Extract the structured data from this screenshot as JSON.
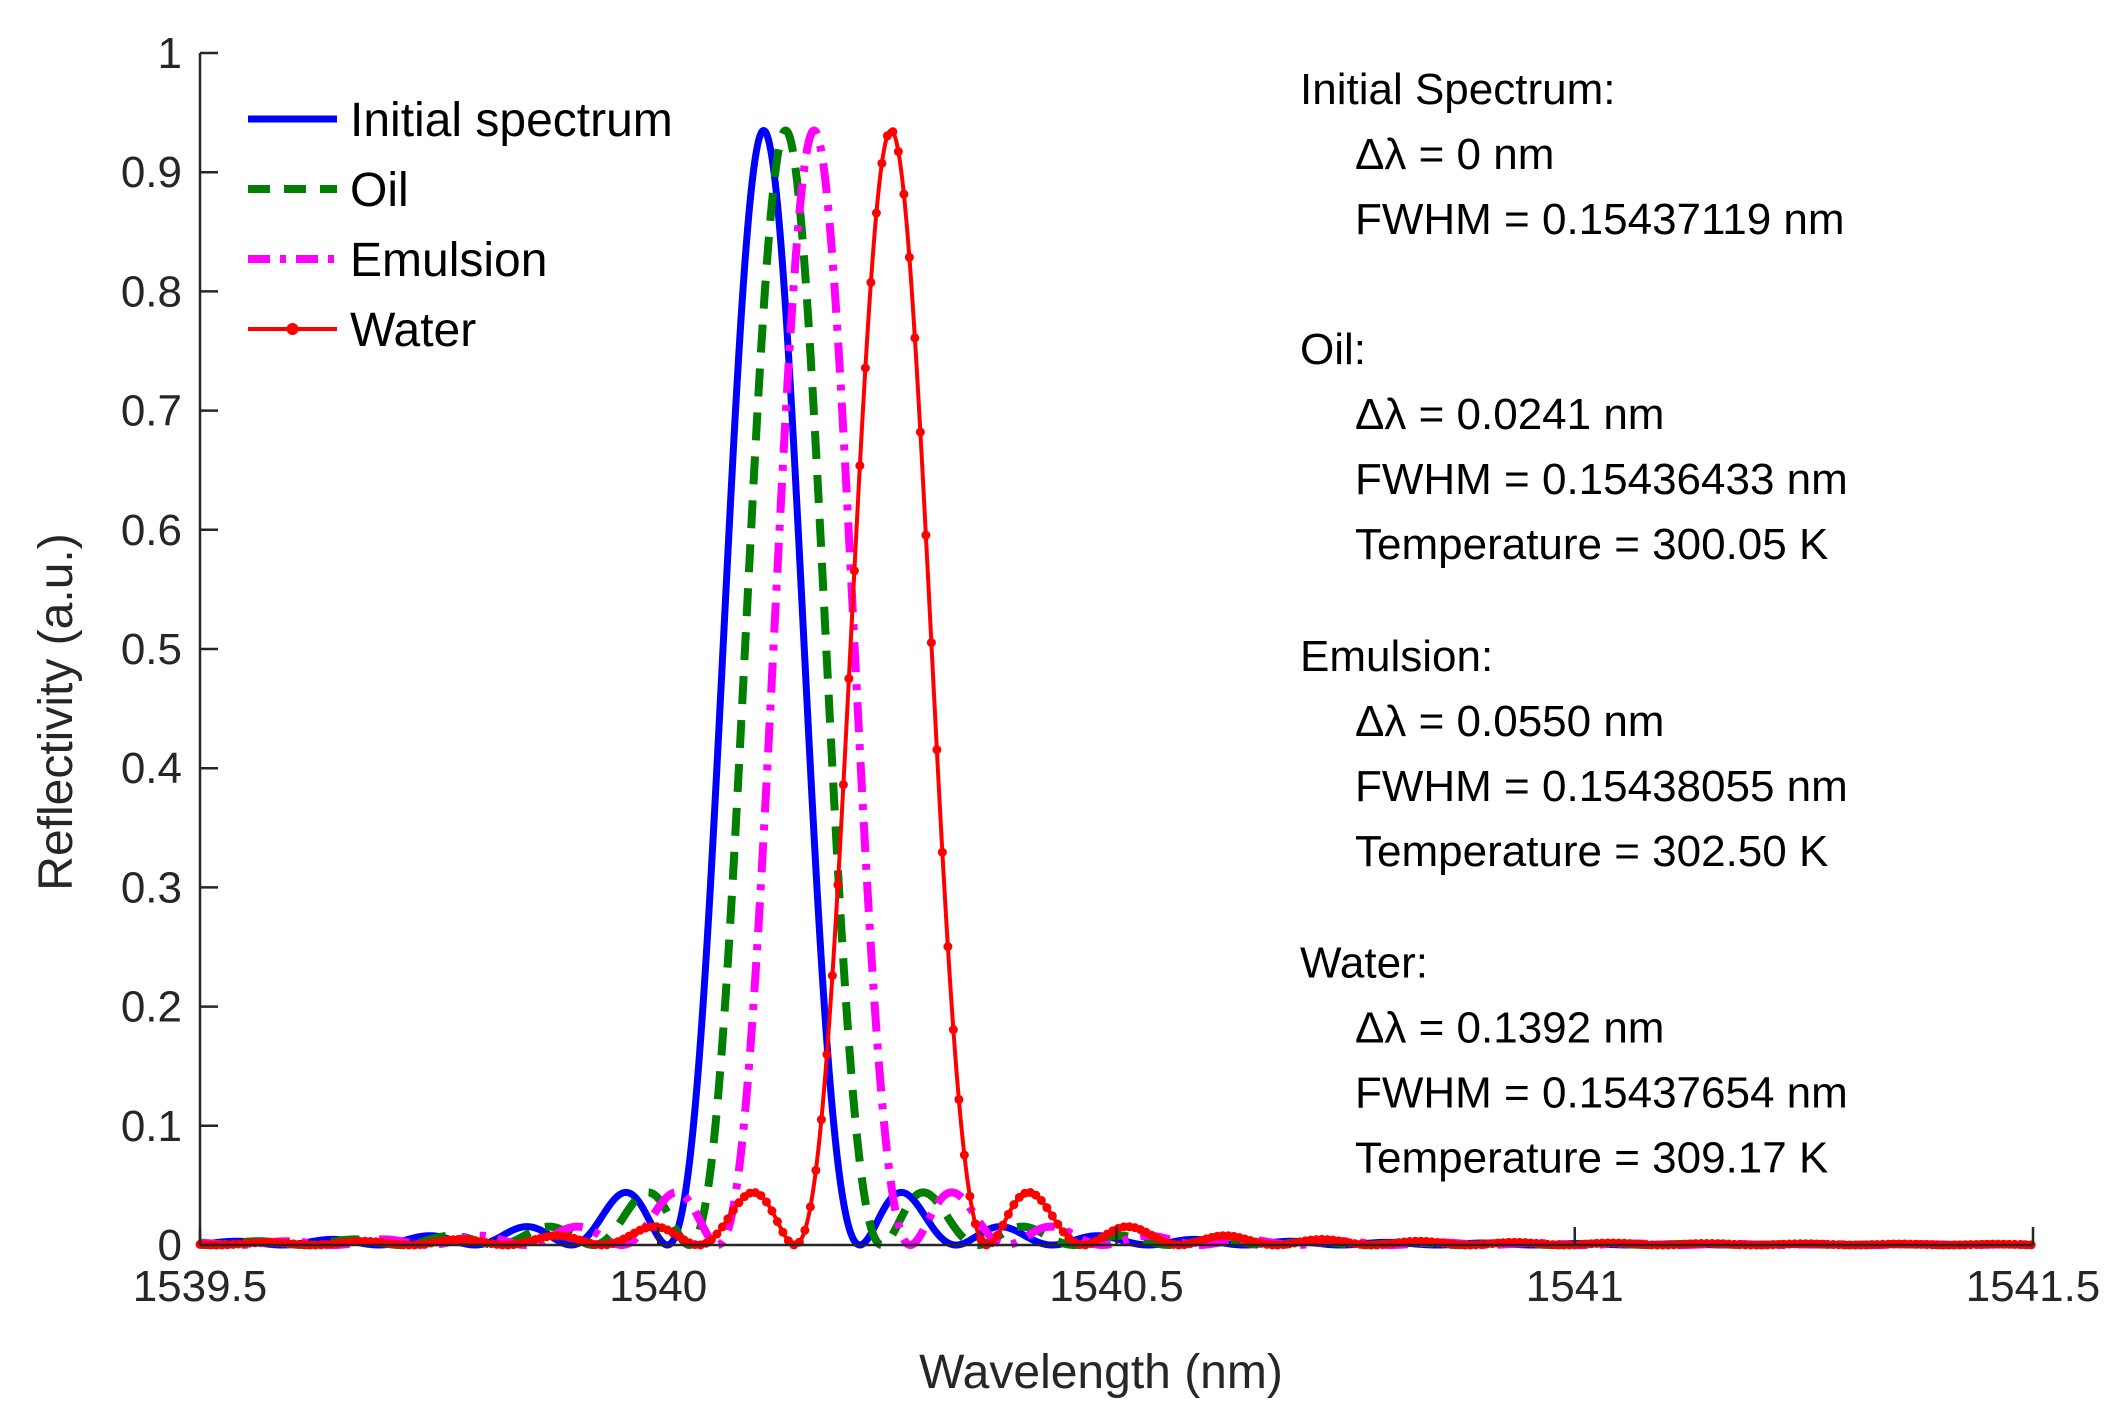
{
  "chart_data": {
    "type": "line",
    "xlabel": "Wavelength (nm)",
    "ylabel": "Reflectivity (a.u.)",
    "xlim": [
      1539.5,
      1541.5
    ],
    "ylim": [
      0,
      1
    ],
    "xticks": [
      1539.5,
      1540,
      1540.5,
      1541,
      1541.5
    ],
    "xtick_labels": [
      "1539.5",
      "1540",
      "1540.5",
      "1541",
      "1541.5"
    ],
    "yticks": [
      0,
      0.1,
      0.2,
      0.3,
      0.4,
      0.5,
      0.6,
      0.7,
      0.8,
      0.9,
      1
    ],
    "ytick_labels": [
      "0",
      "0.1",
      "0.2",
      "0.3",
      "0.4",
      "0.5",
      "0.6",
      "0.7",
      "0.8",
      "0.9",
      "1"
    ],
    "grid": false,
    "legend_position": "top-left",
    "model": "uniform FBG sinc-squared reflection spectrum",
    "series": [
      {
        "name": "Initial spectrum",
        "center_nm": 1540.115,
        "peak": 0.935,
        "null_halfwidth_nm": 0.105,
        "color": "#0000ff",
        "style": "solid",
        "marker": "none"
      },
      {
        "name": "Oil",
        "center_nm": 1540.139,
        "peak": 0.935,
        "null_halfwidth_nm": 0.105,
        "color": "#007f00",
        "style": "dashed",
        "marker": "none"
      },
      {
        "name": "Emulsion",
        "center_nm": 1540.17,
        "peak": 0.935,
        "null_halfwidth_nm": 0.105,
        "color": "#ff00ff",
        "style": "dashdot",
        "marker": "none"
      },
      {
        "name": "Water",
        "center_nm": 1540.254,
        "peak": 0.935,
        "null_halfwidth_nm": 0.105,
        "color": "#ff0000",
        "style": "solid",
        "marker": "dot"
      }
    ]
  },
  "annotations": [
    {
      "heading": "Initial Spectrum:",
      "lines": [
        "Δλ = 0 nm",
        "FWHM = 0.15437119 nm"
      ]
    },
    {
      "heading": "Oil:",
      "lines": [
        "Δλ = 0.0241 nm",
        "FWHM = 0.15436433 nm",
        "Temperature = 300.05 K"
      ]
    },
    {
      "heading": "Emulsion:",
      "lines": [
        "Δλ = 0.0550 nm",
        "FWHM = 0.15438055 nm",
        "Temperature = 302.50 K"
      ]
    },
    {
      "heading": "Water:",
      "lines": [
        "Δλ = 0.1392 nm",
        "FWHM = 0.15437654 nm",
        "Temperature = 309.17 K"
      ]
    }
  ]
}
